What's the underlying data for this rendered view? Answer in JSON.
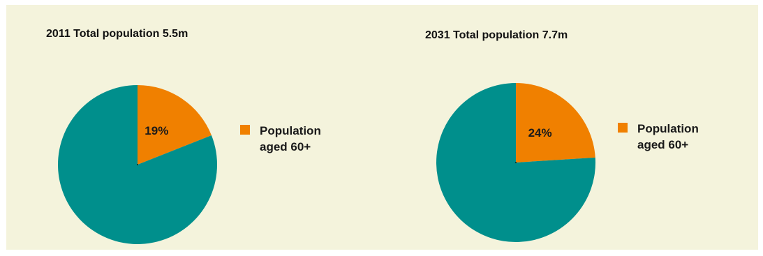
{
  "colors": {
    "background": "#f4f3dc",
    "rest": "#008f8c",
    "aged_60_plus": "#f08000",
    "center_dot": "#000000"
  },
  "chart_data": [
    {
      "type": "pie",
      "title": "2011 Total population 5.5m",
      "slices": [
        {
          "label": "Population aged 60+",
          "value": 19,
          "value_label": "19%",
          "color": "#f08000",
          "legend": true
        },
        {
          "label": "",
          "value": 81,
          "value_label": "",
          "color": "#008f8c",
          "legend": false
        }
      ],
      "start": "12 o'clock, clockwise",
      "legend": {
        "entry": "Population aged 60+",
        "position": "right"
      }
    },
    {
      "type": "pie",
      "title": "2031 Total population 7.7m",
      "slices": [
        {
          "label": "Population aged 60+",
          "value": 24,
          "value_label": "24%",
          "color": "#f08000",
          "legend": true
        },
        {
          "label": "",
          "value": 76,
          "value_label": "",
          "color": "#008f8c",
          "legend": false
        }
      ],
      "start": "12 o'clock, clockwise",
      "legend": {
        "entry": "Population aged 60+",
        "position": "right"
      }
    }
  ]
}
